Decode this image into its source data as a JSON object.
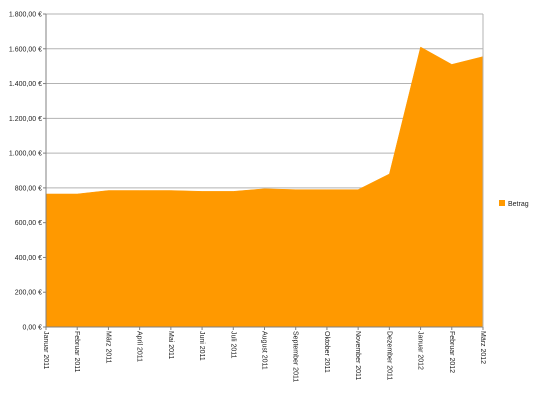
{
  "chart_data": {
    "type": "area",
    "title": "",
    "xlabel": "",
    "ylabel": "",
    "categories": [
      "Januar 2011",
      "Februar 2011",
      "März 2011",
      "April 2011",
      "Mai 2011",
      "Juni 2011",
      "Juli 2011",
      "August 2011",
      "September 2011",
      "Oktober 2011",
      "November 2011",
      "Dezember 2011",
      "Januar 2012",
      "Februar 2012",
      "März 2012"
    ],
    "series": [
      {
        "name": "Betrag",
        "color": "#ff9900",
        "values": [
          765,
          765,
          785,
          785,
          785,
          780,
          780,
          795,
          790,
          790,
          790,
          880,
          1610,
          1510,
          1555
        ]
      }
    ],
    "ylim": [
      0,
      1800
    ],
    "yticks": [
      0,
      200,
      400,
      600,
      800,
      1000,
      1200,
      1400,
      1600,
      1800
    ],
    "ytick_labels": [
      "0,00 €",
      "200,00 €",
      "400,00 €",
      "600,00 €",
      "800,00 €",
      "1.000,00 €",
      "1.200,00 €",
      "1.400,00 €",
      "1.600,00 €",
      "1.800,00 €"
    ],
    "grid": true,
    "legend": "right"
  }
}
